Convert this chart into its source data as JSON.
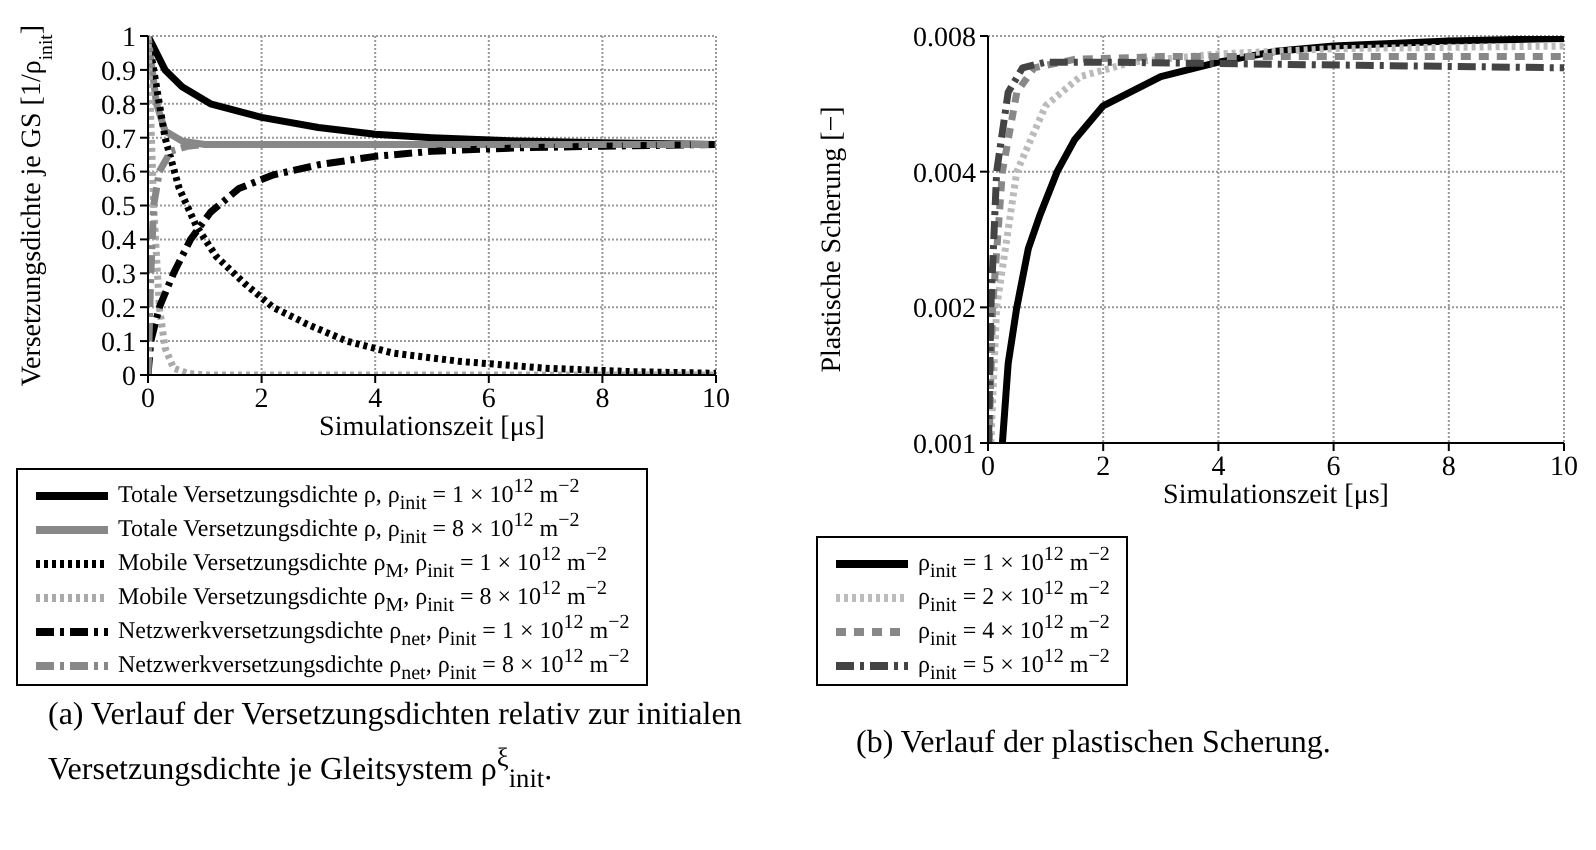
{
  "chart_data": [
    {
      "type": "line",
      "xlabel": "Simulationszeit [μs]",
      "ylabel": "Versetzungsdichte je GS [1/ρ$_{init}$]",
      "xlim": [
        0,
        10
      ],
      "xticks": [
        0,
        2,
        4,
        6,
        8,
        10
      ],
      "ylim": [
        0,
        1
      ],
      "yticks": [
        0,
        0.1,
        0.2,
        0.3,
        0.4,
        0.5,
        0.6,
        0.7,
        0.8,
        0.9,
        1
      ],
      "grid": true,
      "legend": "bottom",
      "marker": "none",
      "annotations": [
        "(a) Verlauf der Versetzungsdichten relativ zur initialen Versetzungsdichte je Gleitsystem ρ$^{ξ}$$_{init}$."
      ],
      "series": [
        {
          "name": "Totale Versetzungsdichte ρ, ρ$_{init}$ = 1 × 10$^{12}$ m$^{−2}$",
          "color": "#000000",
          "line_style": "solid",
          "x": [
            0,
            0.3,
            0.6,
            1.1,
            2,
            3,
            4,
            5,
            6.5,
            8,
            10
          ],
          "values": [
            1,
            0.9,
            0.85,
            0.8,
            0.76,
            0.73,
            0.71,
            0.7,
            0.69,
            0.685,
            0.68
          ]
        },
        {
          "name": "Totale Versetzungsdichte ρ, ρ$_{init}$ = 8 × 10$^{12}$ m$^{−2}$",
          "color": "#888888",
          "line_style": "solid",
          "x": [
            0,
            0.15,
            0.3,
            0.6,
            1,
            10
          ],
          "values": [
            1,
            0.8,
            0.72,
            0.69,
            0.68,
            0.68
          ]
        },
        {
          "name": "Mobile Versetzungsdichte ρ$_{M}$, ρ$_{init}$ = 1 × 10$^{12}$ m$^{−2}$",
          "color": "#000000",
          "line_style": "dotted",
          "x": [
            0,
            0.1,
            0.3,
            0.55,
            0.85,
            1.2,
            1.7,
            2.2,
            2.8,
            3.5,
            4.3,
            5.5,
            7,
            8.5,
            10
          ],
          "values": [
            1,
            0.9,
            0.7,
            0.55,
            0.44,
            0.35,
            0.27,
            0.2,
            0.15,
            0.1,
            0.065,
            0.04,
            0.02,
            0.01,
            0.005
          ]
        },
        {
          "name": "Mobile Versetzungsdichte ρ$_{M}$, ρ$_{init}$ = 8 × 10$^{12}$ m$^{−2}$",
          "color": "#aaaaaa",
          "line_style": "dotted",
          "x": [
            0,
            0.1,
            0.2,
            0.3,
            0.45,
            0.7,
            1,
            10
          ],
          "values": [
            1,
            0.5,
            0.2,
            0.08,
            0.02,
            0.005,
            0,
            0
          ]
        },
        {
          "name": "Netzwerkversetzungsdichte ρ$_{net}$, ρ$_{init}$ = 1 × 10$^{12}$ m$^{−2}$",
          "color": "#000000",
          "line_style": "dashdot",
          "x": [
            0,
            0.05,
            0.2,
            0.45,
            0.75,
            1.1,
            1.6,
            2.2,
            3,
            4,
            5,
            6.5,
            8,
            10
          ],
          "values": [
            0,
            0.1,
            0.2,
            0.3,
            0.4,
            0.48,
            0.55,
            0.59,
            0.62,
            0.645,
            0.66,
            0.67,
            0.675,
            0.68
          ]
        },
        {
          "name": "Netzwerkversetzungsdichte ρ$_{net}$, ρ$_{init}$ = 8 × 10$^{12}$ m$^{−2}$",
          "color": "#888888",
          "line_style": "dashdot",
          "x": [
            0,
            0.05,
            0.1,
            0.2,
            0.4,
            0.7,
            1,
            10
          ],
          "values": [
            0,
            0.3,
            0.5,
            0.6,
            0.66,
            0.675,
            0.68,
            0.68
          ]
        }
      ]
    },
    {
      "type": "line",
      "xlabel": "Simulationszeit [μs]",
      "ylabel": "Plastische Scherung [−]",
      "xlim": [
        0,
        10
      ],
      "xticks": [
        0,
        2,
        4,
        6,
        8,
        10
      ],
      "ylim": [
        0.001,
        0.008
      ],
      "yticks": [
        0.001,
        0.002,
        0.004,
        0.008
      ],
      "log": "y",
      "grid": true,
      "legend": "bottom",
      "marker": "none",
      "annotations": [
        "(b) Verlauf der plastischen Scherung."
      ],
      "series": [
        {
          "name": "ρ$_{init}$ = 1 × 10$^{12}$ m$^{−2}$",
          "color": "#000000",
          "line_style": "solid",
          "x": [
            0.25,
            0.35,
            0.5,
            0.7,
            0.9,
            1.2,
            1.5,
            2,
            3,
            4,
            5,
            6,
            8,
            10
          ],
          "values": [
            0.001,
            0.0015,
            0.002,
            0.0027,
            0.0032,
            0.004,
            0.0047,
            0.0056,
            0.0065,
            0.007,
            0.0074,
            0.0076,
            0.0078,
            0.0079
          ]
        },
        {
          "name": "ρ$_{init}$ = 2 × 10$^{12}$ m$^{−2}$",
          "color": "#bbbbbb",
          "line_style": "dotted",
          "x": [
            0.05,
            0.15,
            0.5,
            1,
            1.6,
            2.5,
            4,
            6,
            10
          ],
          "values": [
            0.001,
            0.002,
            0.004,
            0.0056,
            0.0065,
            0.007,
            0.0073,
            0.0075,
            0.0076
          ]
        },
        {
          "name": "ρ$_{init}$ = 4 × 10$^{12}$ m$^{−2}$",
          "color": "#888888",
          "line_style": "dashed",
          "x": [
            0.02,
            0.08,
            0.25,
            0.5,
            0.8,
            1.5,
            3,
            10
          ],
          "values": [
            0.001,
            0.002,
            0.004,
            0.006,
            0.0068,
            0.0071,
            0.0072,
            0.0072
          ]
        },
        {
          "name": "ρ$_{init}$ = 5 × 10$^{12}$ m$^{−2}$",
          "color": "#444444",
          "line_style": "dashdot",
          "x": [
            0.01,
            0.05,
            0.15,
            0.35,
            0.6,
            1,
            2,
            10
          ],
          "values": [
            0.001,
            0.002,
            0.004,
            0.006,
            0.0068,
            0.007,
            0.007,
            0.0068
          ]
        }
      ]
    }
  ]
}
